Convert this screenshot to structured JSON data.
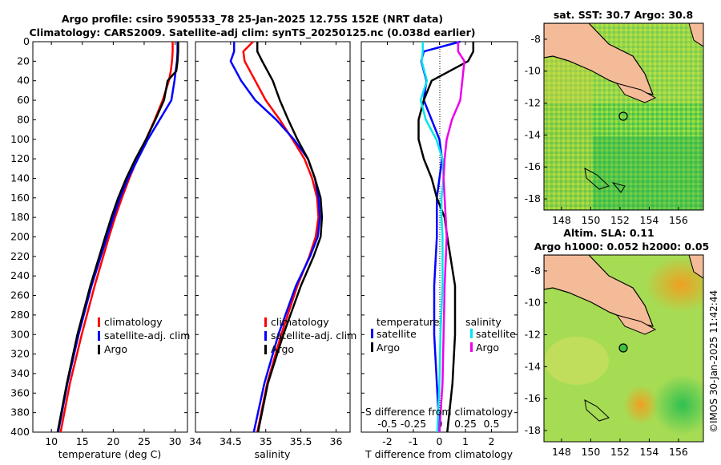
{
  "title": {
    "line1": "Argo profile: csiro 5905533_78 25-Jan-2025 12.75S 152E (NRT data)",
    "line2": "Climatology: CARS2009. Satellite-adj clim: synTS_20250125.nc (0.038d earlier)"
  },
  "watermark": "©IMOS 30-Jan-2025 11:42:44",
  "colors": {
    "climatology": "#ff0000",
    "satellite": "#0000ff",
    "argo": "#000000",
    "sat_diff_t": "#00e5ee",
    "sat_diff_s": "#ee00ee",
    "land": "#f4bb98"
  },
  "chart_data": [
    {
      "type": "line",
      "name": "temperature-profile",
      "xlabel": "temperature (deg C)",
      "ylabel": "",
      "xlim": [
        7,
        32
      ],
      "ylim": [
        400,
        0
      ],
      "xticks": [
        "10",
        "15",
        "20",
        "25",
        "30"
      ],
      "yticks": [
        "0",
        "20",
        "40",
        "60",
        "80",
        "100",
        "120",
        "140",
        "160",
        "180",
        "200",
        "220",
        "240",
        "260",
        "280",
        "300",
        "320",
        "340",
        "360",
        "380",
        "400"
      ],
      "depth": [
        0,
        10,
        20,
        30,
        40,
        60,
        80,
        100,
        120,
        140,
        160,
        180,
        200,
        250,
        300,
        350,
        400
      ],
      "series": [
        {
          "name": "climatology",
          "values": [
            29.6,
            29.6,
            29.5,
            29.3,
            29.0,
            28.0,
            26.7,
            25.3,
            23.9,
            22.6,
            21.4,
            20.3,
            19.3,
            17.0,
            14.9,
            13.0,
            11.5
          ]
        },
        {
          "name": "satellite-adj. clim",
          "values": [
            30.4,
            30.4,
            30.3,
            30.1,
            29.9,
            29.4,
            27.5,
            25.6,
            24.0,
            22.4,
            21.1,
            20.0,
            19.0,
            16.5,
            14.4,
            12.6,
            11.1
          ]
        },
        {
          "name": "Argo",
          "values": [
            30.5,
            30.5,
            30.4,
            30.2,
            28.8,
            28.2,
            26.8,
            25.3,
            23.6,
            22.1,
            20.8,
            19.7,
            18.7,
            16.3,
            14.2,
            12.5,
            11.0
          ]
        }
      ],
      "legend": [
        "climatology",
        "satellite-adj. clim",
        "Argo"
      ]
    },
    {
      "type": "line",
      "name": "salinity-profile",
      "xlabel": "salinity",
      "ylabel": "",
      "xlim": [
        34,
        36.2
      ],
      "ylim": [
        400,
        0
      ],
      "xticks": [
        "34",
        "34.5",
        "35",
        "35.5",
        "36"
      ],
      "depth": [
        0,
        10,
        20,
        40,
        60,
        80,
        100,
        120,
        140,
        160,
        180,
        200,
        220,
        250,
        300,
        350,
        400
      ],
      "series": [
        {
          "name": "climatology",
          "values": [
            34.82,
            34.68,
            34.7,
            34.85,
            35.0,
            35.2,
            35.38,
            35.55,
            35.66,
            35.73,
            35.75,
            35.71,
            35.62,
            35.45,
            35.22,
            35.02,
            34.88
          ]
        },
        {
          "name": "satellite-adj. clim",
          "values": [
            34.55,
            34.55,
            34.5,
            34.65,
            34.85,
            35.15,
            35.4,
            35.6,
            35.7,
            35.75,
            35.77,
            35.74,
            35.63,
            35.43,
            35.18,
            34.98,
            34.83
          ]
        },
        {
          "name": "Argo",
          "values": [
            34.88,
            34.88,
            34.95,
            35.1,
            35.2,
            35.32,
            35.45,
            35.6,
            35.7,
            35.78,
            35.8,
            35.78,
            35.68,
            35.5,
            35.25,
            35.03,
            34.89
          ]
        }
      ],
      "legend": [
        "climatology",
        "satellite-adj. clim",
        "Argo"
      ]
    },
    {
      "type": "line",
      "name": "difference-profile",
      "xlabel": "T difference from climatology",
      "xlabel2": "S difference from climatology",
      "xlim": [
        -3,
        3
      ],
      "ylim": [
        400,
        0
      ],
      "xticks": [
        "-2",
        "-1",
        "0",
        "1",
        "2"
      ],
      "xticks2": [
        "-0.5",
        "-0.25",
        "0",
        "0.25",
        "0.5"
      ],
      "depth": [
        0,
        10,
        20,
        40,
        60,
        80,
        100,
        120,
        140,
        160,
        180,
        200,
        250,
        300,
        350,
        400
      ],
      "series": [
        {
          "name": "temperature satellite",
          "values": [
            0.8,
            -0.6,
            -0.7,
            -0.5,
            -0.6,
            -0.3,
            0.0,
            0.1,
            0.0,
            -0.1,
            -0.1,
            -0.1,
            -0.2,
            -0.2,
            -0.1,
            0.0
          ]
        },
        {
          "name": "temperature Argo",
          "values": [
            1.3,
            1.3,
            1.1,
            -0.3,
            -0.6,
            -0.8,
            -0.8,
            -0.6,
            -0.3,
            -0.1,
            0.2,
            0.3,
            0.6,
            0.6,
            0.5,
            0.3
          ]
        },
        {
          "name": "salinity satellite",
          "values": [
            -0.16,
            -0.16,
            -0.17,
            -0.12,
            -0.18,
            -0.13,
            -0.03,
            0.03,
            0.04,
            0.02,
            0.02,
            0.03,
            0.03,
            0.01,
            0.0,
            -0.02
          ]
        },
        {
          "name": "salinity Argo",
          "values": [
            0.18,
            0.18,
            0.24,
            0.22,
            0.2,
            0.12,
            0.07,
            0.05,
            0.04,
            0.05,
            0.06,
            0.07,
            0.05,
            0.04,
            0.03,
            0.0
          ]
        }
      ],
      "legend_headers": [
        "temperature",
        "salinity"
      ],
      "legend": [
        "satellite",
        "Argo",
        "satellite",
        "Argo"
      ]
    },
    {
      "type": "heatmap",
      "name": "sst-map",
      "title": "sat. SST: 30.7  Argo: 30.8",
      "xticks": [
        "148",
        "150",
        "152",
        "154",
        "156"
      ],
      "yticks": [
        "-8",
        "-10",
        "-12",
        "-14",
        "-16",
        "-18"
      ],
      "marker": {
        "lon": 152,
        "lat": -12.75
      }
    },
    {
      "type": "heatmap",
      "name": "sla-map",
      "title": "Altim. SLA: 0.11",
      "subtitle": "Argo h1000: 0.052  h2000: 0.05",
      "xticks": [
        "148",
        "150",
        "152",
        "154",
        "156"
      ],
      "yticks": [
        "-8",
        "-10",
        "-12",
        "-14",
        "-16",
        "-18"
      ],
      "marker": {
        "lon": 152,
        "lat": -12.75
      }
    }
  ]
}
